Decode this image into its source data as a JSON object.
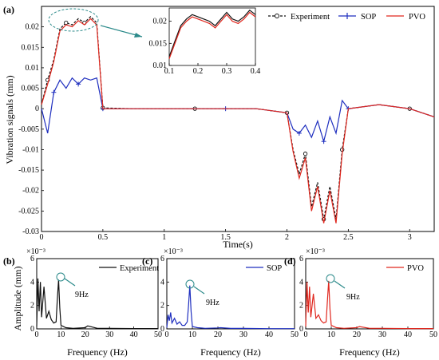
{
  "colors": {
    "experiment": "#111111",
    "sop": "#1f2fbf",
    "pvo": "#e0271e",
    "annotation": "#2b8a8a"
  },
  "chart_data": [
    {
      "panel": "(a)",
      "type": "line",
      "xlabel": "Time(s)",
      "ylabel": "Vibration signals (mm)",
      "xlim": [
        0,
        3.2
      ],
      "ylim": [
        -0.03,
        0.025
      ],
      "xticks": [
        "0",
        "0.5",
        "1",
        "1.5",
        "2",
        "2.5",
        "3"
      ],
      "yticks": [
        "0.02",
        "0.015",
        "0.01",
        "0.005",
        "0",
        "-0.005",
        "-0.01",
        "-0.015",
        "-0.02",
        "-0.025",
        "-0.03"
      ],
      "legend": {
        "position": "top-right",
        "entries": [
          "Experiment",
          "SOP",
          "PVO"
        ]
      },
      "series": [
        {
          "name": "Experiment",
          "style": "dashed-circle",
          "x": [
            0,
            0.05,
            0.1,
            0.15,
            0.2,
            0.25,
            0.3,
            0.35,
            0.4,
            0.45,
            0.5,
            0.75,
            1.0,
            1.25,
            1.5,
            1.75,
            2.0,
            2.05,
            2.1,
            2.15,
            2.2,
            2.25,
            2.3,
            2.35,
            2.4,
            2.45,
            2.5,
            2.75,
            3.0,
            3.2
          ],
          "y": [
            0.001,
            0.007,
            0.012,
            0.0195,
            0.021,
            0.0205,
            0.022,
            0.021,
            0.0225,
            0.021,
            0.0002,
            0.0,
            0.0,
            0.0,
            0.0,
            0.0,
            -0.001,
            -0.01,
            -0.016,
            -0.011,
            -0.024,
            -0.018,
            -0.027,
            -0.019,
            -0.027,
            -0.01,
            0.0,
            0.001,
            0.0,
            -0.002
          ]
        },
        {
          "name": "SOP",
          "style": "plus",
          "x": [
            0,
            0.05,
            0.1,
            0.15,
            0.2,
            0.25,
            0.3,
            0.35,
            0.4,
            0.45,
            0.5,
            0.75,
            1.0,
            1.25,
            1.5,
            1.75,
            2.0,
            2.05,
            2.1,
            2.15,
            2.2,
            2.25,
            2.3,
            2.35,
            2.4,
            2.45,
            2.5,
            2.75,
            3.0,
            3.2
          ],
          "y": [
            0.0,
            -0.006,
            0.004,
            0.007,
            0.005,
            0.0075,
            0.006,
            0.0075,
            0.007,
            0.0075,
            0.0,
            0.0,
            0.0,
            0.0,
            0.0,
            0.0,
            -0.001,
            -0.005,
            -0.006,
            -0.004,
            -0.007,
            -0.003,
            -0.008,
            -0.002,
            -0.006,
            0.002,
            0.0,
            0.001,
            0.0,
            -0.002
          ]
        },
        {
          "name": "PVO",
          "style": "solid",
          "x": [
            0,
            0.05,
            0.1,
            0.15,
            0.2,
            0.25,
            0.3,
            0.35,
            0.4,
            0.45,
            0.5,
            0.75,
            1.0,
            1.25,
            1.5,
            1.75,
            2.0,
            2.05,
            2.1,
            2.15,
            2.2,
            2.25,
            2.3,
            2.35,
            2.4,
            2.45,
            2.5,
            2.75,
            3.0,
            3.2
          ],
          "y": [
            0.001,
            0.006,
            0.0115,
            0.019,
            0.0205,
            0.02,
            0.0215,
            0.0205,
            0.022,
            0.0205,
            0.0,
            0.0,
            0.0,
            0.0,
            0.0,
            0.0,
            -0.001,
            -0.0105,
            -0.017,
            -0.012,
            -0.025,
            -0.019,
            -0.028,
            -0.02,
            -0.028,
            -0.011,
            0.0,
            0.001,
            0.0,
            -0.002
          ]
        }
      ],
      "inset": {
        "xlim": [
          0.1,
          0.4
        ],
        "ylim": [
          0.01,
          0.023
        ],
        "xticks": [
          "0.1",
          "0.2",
          "0.3",
          "0.4"
        ],
        "yticks": [
          "0.02",
          "0.015",
          "0.01"
        ],
        "series": [
          {
            "name": "Experiment",
            "x": [
              0.1,
              0.12,
              0.14,
              0.16,
              0.18,
              0.2,
              0.22,
              0.24,
              0.26,
              0.28,
              0.3,
              0.32,
              0.34,
              0.36,
              0.38,
              0.4
            ],
            "y": [
              0.012,
              0.0155,
              0.019,
              0.0205,
              0.0215,
              0.021,
              0.0205,
              0.02,
              0.019,
              0.0205,
              0.022,
              0.0205,
              0.02,
              0.021,
              0.0225,
              0.0215
            ]
          },
          {
            "name": "PVO",
            "x": [
              0.1,
              0.12,
              0.14,
              0.16,
              0.18,
              0.2,
              0.22,
              0.24,
              0.26,
              0.28,
              0.3,
              0.32,
              0.34,
              0.36,
              0.38,
              0.4
            ],
            "y": [
              0.0115,
              0.015,
              0.0185,
              0.02,
              0.021,
              0.0205,
              0.02,
              0.0195,
              0.0185,
              0.02,
              0.0215,
              0.02,
              0.0195,
              0.0205,
              0.022,
              0.021
            ]
          }
        ]
      }
    },
    {
      "panel": "(b)",
      "type": "line",
      "xlabel": "Frequency (Hz)",
      "ylabel": "Amplitude (mm)",
      "exponent": "×10⁻³",
      "xlim": [
        0,
        50
      ],
      "ylim": [
        0,
        6
      ],
      "xticks": [
        "0",
        "10",
        "20",
        "30",
        "40",
        "50"
      ],
      "yticks": [
        "0",
        "2",
        "4",
        "6"
      ],
      "legend": {
        "position": "top-right",
        "entries": [
          "Experiment"
        ]
      },
      "annotation": "9Hz",
      "series": [
        {
          "name": "Experiment",
          "x": [
            0,
            0.5,
            1,
            1.5,
            2,
            3,
            4,
            5,
            6,
            7,
            8,
            8.5,
            9,
            9.5,
            10,
            12,
            15,
            20,
            21,
            25,
            30,
            40,
            50
          ],
          "y": [
            0.2,
            4.3,
            1.5,
            4.0,
            1.0,
            3.6,
            0.9,
            1.5,
            0.8,
            0.5,
            0.6,
            2.5,
            4.2,
            1.8,
            0.3,
            0.1,
            0.05,
            0.1,
            0.25,
            0.05,
            0.05,
            0.03,
            0.03
          ]
        }
      ]
    },
    {
      "panel": "(c)",
      "type": "line",
      "xlabel": "Frequency (Hz)",
      "ylabel": "",
      "exponent": "×10⁻³",
      "xlim": [
        0,
        50
      ],
      "ylim": [
        0,
        6
      ],
      "xticks": [
        "0",
        "10",
        "20",
        "30",
        "40",
        "50"
      ],
      "yticks": [
        "0",
        "2",
        "4",
        "6"
      ],
      "legend": {
        "position": "top-right",
        "entries": [
          "SOP"
        ]
      },
      "annotation": "9Hz",
      "series": [
        {
          "name": "SOP",
          "x": [
            0,
            0.5,
            1,
            1.5,
            2,
            3,
            4,
            5,
            6,
            7,
            8,
            8.5,
            9,
            9.5,
            10,
            12,
            15,
            20,
            21,
            25,
            30,
            40,
            50
          ],
          "y": [
            0.1,
            1.2,
            0.7,
            1.4,
            0.5,
            0.9,
            0.4,
            0.6,
            0.3,
            0.3,
            0.6,
            2.0,
            3.7,
            1.5,
            0.2,
            0.1,
            0.05,
            0.08,
            0.1,
            0.04,
            0.04,
            0.02,
            0.02
          ]
        }
      ]
    },
    {
      "panel": "(d)",
      "type": "line",
      "xlabel": "Frequency (Hz)",
      "ylabel": "",
      "exponent": "×10⁻³",
      "xlim": [
        0,
        50
      ],
      "ylim": [
        0,
        6
      ],
      "xticks": [
        "0",
        "10",
        "20",
        "30",
        "40",
        "50"
      ],
      "yticks": [
        "0",
        "2",
        "4",
        "6"
      ],
      "legend": {
        "position": "top-right",
        "entries": [
          "PVO"
        ]
      },
      "annotation": "9Hz",
      "series": [
        {
          "name": "PVO",
          "x": [
            0,
            0.5,
            1,
            1.5,
            2,
            3,
            4,
            5,
            6,
            7,
            8,
            8.5,
            9,
            9.5,
            10,
            12,
            15,
            20,
            21,
            25,
            30,
            40,
            50
          ],
          "y": [
            0.2,
            4.0,
            1.4,
            3.6,
            1.0,
            3.0,
            0.9,
            1.2,
            0.7,
            0.5,
            0.6,
            2.4,
            4.1,
            1.7,
            0.3,
            0.1,
            0.05,
            0.1,
            0.2,
            0.05,
            0.05,
            0.03,
            0.03
          ]
        }
      ]
    }
  ]
}
